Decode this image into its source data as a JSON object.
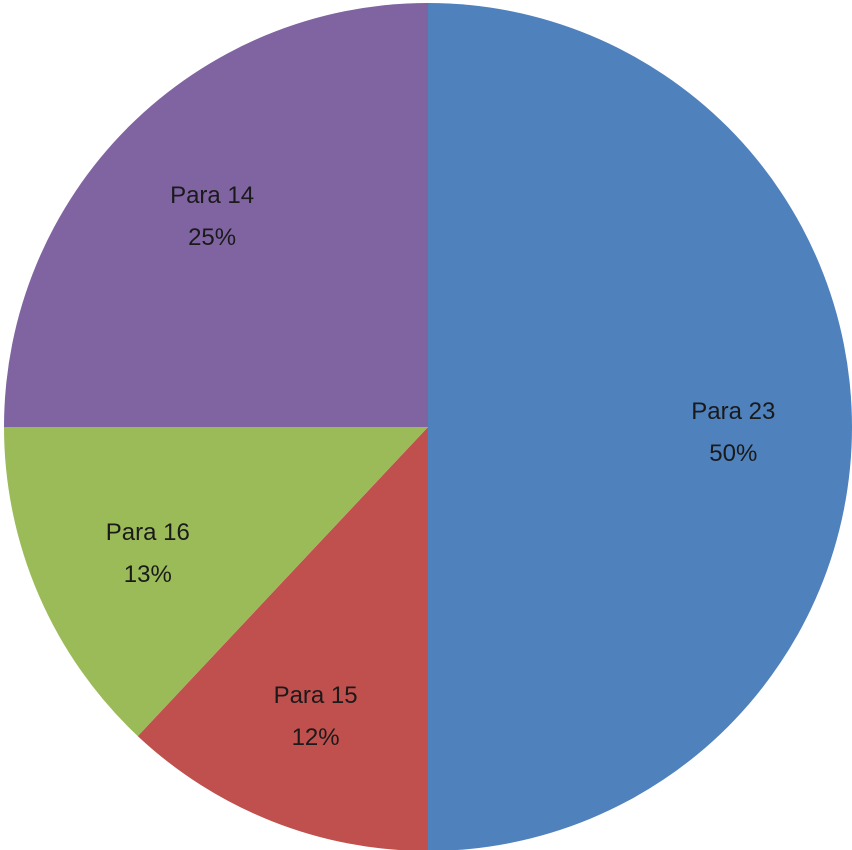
{
  "chart_data": {
    "type": "pie",
    "start_angle": "12 o'clock",
    "direction": "clockwise",
    "slices": [
      {
        "name": "Para 23",
        "value": 50,
        "label": "50%",
        "color": "#4f81bd"
      },
      {
        "name": "Para 15",
        "value": 12,
        "label": "12%",
        "color": "#c0504d"
      },
      {
        "name": "Para 16",
        "value": 13,
        "label": "13%",
        "color": "#9bbb59"
      },
      {
        "name": "Para 14",
        "value": 25,
        "label": "25%",
        "color": "#8064a2"
      }
    ]
  }
}
